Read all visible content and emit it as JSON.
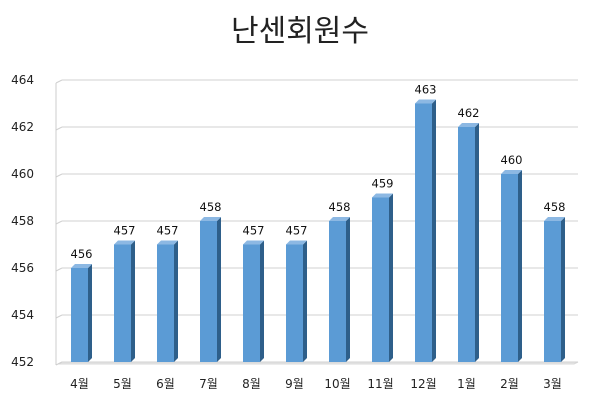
{
  "chart_data": {
    "type": "bar",
    "title": "난센회원수",
    "categories": [
      "4월",
      "5월",
      "6월",
      "7월",
      "8월",
      "9월",
      "10월",
      "11월",
      "12월",
      "1월",
      "2월",
      "3월"
    ],
    "values": [
      456,
      457,
      457,
      458,
      457,
      457,
      458,
      459,
      463,
      462,
      460,
      458
    ],
    "ylim": [
      452,
      464
    ],
    "yticks": [
      452,
      454,
      456,
      458,
      460,
      462,
      464
    ],
    "grid": true,
    "legend": "none",
    "bar_color": "#5B9BD5",
    "bar_side_color": "#2E5F8A",
    "bar_top_color": "#8CB8E3",
    "style": "3d-column"
  }
}
